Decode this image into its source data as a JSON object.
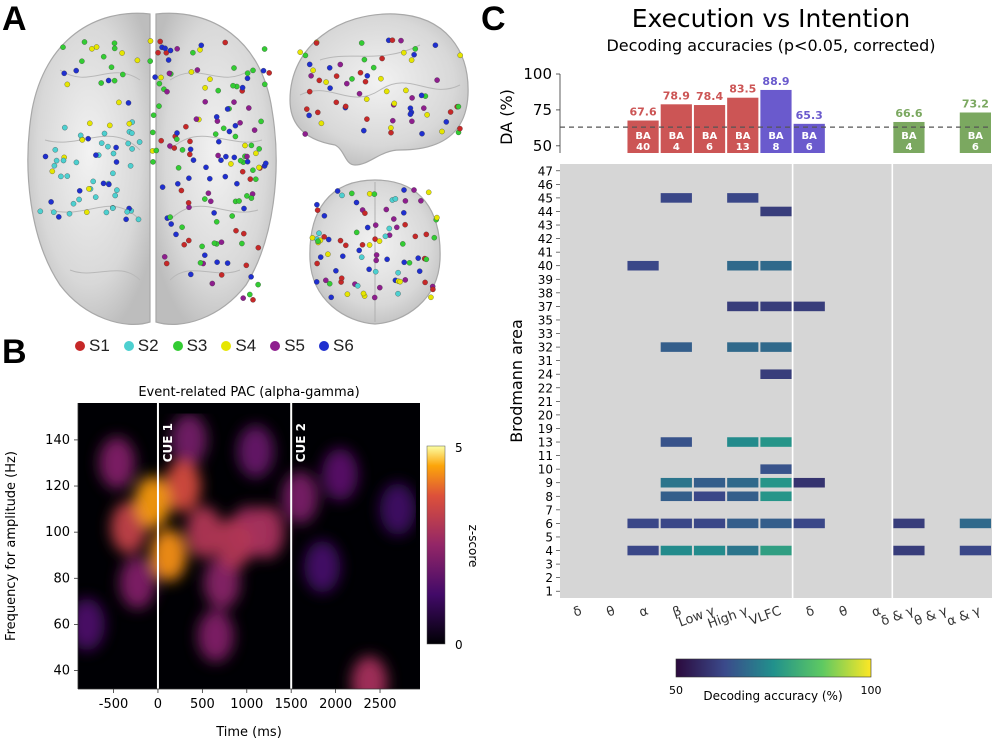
{
  "panel_labels": {
    "a": "A",
    "b": "B",
    "c": "C"
  },
  "panel_a": {
    "legend": [
      {
        "label": "S1",
        "color": "#c62828"
      },
      {
        "label": "S2",
        "color": "#4dd0d0"
      },
      {
        "label": "S3",
        "color": "#33cc33"
      },
      {
        "label": "S4",
        "color": "#e6e600"
      },
      {
        "label": "S5",
        "color": "#8e1e8e"
      },
      {
        "label": "S6",
        "color": "#1f2fcf"
      }
    ]
  },
  "chart_data": [
    {
      "type": "heatmap",
      "title": "Event-related PAC (alpha-gamma)",
      "xlabel": "Time (ms)",
      "ylabel": "Frequency for amplitude (Hz)",
      "xticks": [
        -500,
        0,
        500,
        1000,
        1500,
        2000,
        2500
      ],
      "yticks": [
        40,
        60,
        80,
        100,
        120,
        140
      ],
      "xlim": [
        -900,
        2950
      ],
      "ylim": [
        32,
        156
      ],
      "annotations": [
        {
          "label": "CUE 1",
          "x": 0
        },
        {
          "label": "CUE 2",
          "x": 1500
        }
      ],
      "colorbar": {
        "label": "z-score",
        "min": 0,
        "max": 5,
        "ticks": [
          0,
          5
        ]
      },
      "hotspots": [
        {
          "t": 120,
          "f": 90,
          "z": 4.3
        },
        {
          "t": -60,
          "f": 113,
          "z": 4.4
        },
        {
          "t": 280,
          "f": 120,
          "z": 3.6
        },
        {
          "t": -330,
          "f": 102,
          "z": 3.3
        },
        {
          "t": 520,
          "f": 100,
          "z": 3.0
        },
        {
          "t": 850,
          "f": 95,
          "z": 3.0
        },
        {
          "t": 1020,
          "f": 100,
          "z": 2.7
        },
        {
          "t": 1220,
          "f": 100,
          "z": 2.8
        },
        {
          "t": -460,
          "f": 130,
          "z": 2.2
        },
        {
          "t": -230,
          "f": 78,
          "z": 2.2
        },
        {
          "t": 1600,
          "f": 115,
          "z": 2.1
        },
        {
          "t": 720,
          "f": 78,
          "z": 2.3
        },
        {
          "t": 350,
          "f": 140,
          "z": 2.0
        },
        {
          "t": 2050,
          "f": 125,
          "z": 1.6
        },
        {
          "t": 650,
          "f": 55,
          "z": 2.2
        },
        {
          "t": 2380,
          "f": 35,
          "z": 2.8
        },
        {
          "t": -800,
          "f": 60,
          "z": 1.4
        },
        {
          "t": 1100,
          "f": 135,
          "z": 1.8
        },
        {
          "t": 1850,
          "f": 85,
          "z": 1.3
        },
        {
          "t": 2700,
          "f": 110,
          "z": 1.2
        }
      ]
    },
    {
      "type": "bar",
      "title": "Execution vs Intention",
      "subtitle": "Decoding accuracies (p<0.05, corrected)",
      "ylabel": "DA (%)",
      "ylim": [
        45,
        100
      ],
      "yticks": [
        50,
        75,
        100
      ],
      "threshold": 63,
      "bars": [
        {
          "col": 2,
          "value": 67.6,
          "label": "67.6",
          "ba": "BA",
          "area": "40",
          "color": "#cc5555"
        },
        {
          "col": 3,
          "value": 78.9,
          "label": "78.9",
          "ba": "BA",
          "area": "4",
          "color": "#cc5555"
        },
        {
          "col": 4,
          "value": 78.4,
          "label": "78.4",
          "ba": "BA",
          "area": "6",
          "color": "#cc5555"
        },
        {
          "col": 5,
          "value": 83.5,
          "label": "83.5",
          "ba": "BA",
          "area": "13",
          "color": "#cc5555"
        },
        {
          "col": 6,
          "value": 88.9,
          "label": "88.9",
          "ba": "BA",
          "area": "8",
          "color": "#6a5acd"
        },
        {
          "col": 7,
          "value": 65.3,
          "label": "65.3",
          "ba": "BA",
          "area": "6",
          "color": "#6a5acd"
        },
        {
          "col": 10,
          "value": 66.6,
          "label": "66.6",
          "ba": "BA",
          "area": "4",
          "color": "#7ba860"
        },
        {
          "col": 12,
          "value": 73.2,
          "label": "73.2",
          "ba": "BA",
          "area": "6",
          "color": "#7ba860"
        }
      ]
    },
    {
      "type": "heatmap",
      "ylabel": "Brodmann area",
      "rows": [
        "47",
        "46",
        "45",
        "44",
        "43",
        "42",
        "41",
        "40",
        "39",
        "38",
        "37",
        "35",
        "33",
        "32",
        "31",
        "24",
        "22",
        "21",
        "20",
        "19",
        "13",
        "11",
        "10",
        "9",
        "8",
        "7",
        "6",
        "5",
        "4",
        "3",
        "2",
        "1"
      ],
      "columns": [
        "δ",
        "θ",
        "α",
        "β",
        "Low γ",
        "High γ",
        "VLFC",
        "δ",
        "θ",
        "α",
        "δ & γ",
        "θ & γ",
        "α & γ"
      ],
      "colorbar": {
        "label": "Decoding accuracy (%)",
        "min": 50,
        "max": 100,
        "ticks": [
          "50",
          "100"
        ]
      },
      "cells": [
        {
          "row": "45",
          "col": 3,
          "v": 62
        },
        {
          "row": "45",
          "col": 5,
          "v": 62
        },
        {
          "row": "44",
          "col": 6,
          "v": 60
        },
        {
          "row": "40",
          "col": 2,
          "v": 62
        },
        {
          "row": "40",
          "col": 5,
          "v": 68
        },
        {
          "row": "40",
          "col": 6,
          "v": 68
        },
        {
          "row": "37",
          "col": 5,
          "v": 60
        },
        {
          "row": "37",
          "col": 6,
          "v": 60
        },
        {
          "row": "37",
          "col": 7,
          "v": 60
        },
        {
          "row": "32",
          "col": 3,
          "v": 66
        },
        {
          "row": "32",
          "col": 5,
          "v": 68
        },
        {
          "row": "32",
          "col": 6,
          "v": 68
        },
        {
          "row": "24",
          "col": 6,
          "v": 60
        },
        {
          "row": "13",
          "col": 3,
          "v": 64
        },
        {
          "row": "13",
          "col": 5,
          "v": 74
        },
        {
          "row": "13",
          "col": 6,
          "v": 76
        },
        {
          "row": "10",
          "col": 6,
          "v": 64
        },
        {
          "row": "9",
          "col": 3,
          "v": 70
        },
        {
          "row": "9",
          "col": 4,
          "v": 66
        },
        {
          "row": "9",
          "col": 5,
          "v": 68
        },
        {
          "row": "9",
          "col": 6,
          "v": 76
        },
        {
          "row": "9",
          "col": 7,
          "v": 58
        },
        {
          "row": "8",
          "col": 3,
          "v": 66
        },
        {
          "row": "8",
          "col": 4,
          "v": 62
        },
        {
          "row": "8",
          "col": 5,
          "v": 66
        },
        {
          "row": "8",
          "col": 6,
          "v": 76
        },
        {
          "row": "6",
          "col": 2,
          "v": 62
        },
        {
          "row": "6",
          "col": 3,
          "v": 62
        },
        {
          "row": "6",
          "col": 4,
          "v": 62
        },
        {
          "row": "6",
          "col": 5,
          "v": 66
        },
        {
          "row": "6",
          "col": 6,
          "v": 66
        },
        {
          "row": "6",
          "col": 7,
          "v": 62
        },
        {
          "row": "6",
          "col": 10,
          "v": 60
        },
        {
          "row": "6",
          "col": 12,
          "v": 68
        },
        {
          "row": "4",
          "col": 2,
          "v": 62
        },
        {
          "row": "4",
          "col": 3,
          "v": 74
        },
        {
          "row": "4",
          "col": 4,
          "v": 74
        },
        {
          "row": "4",
          "col": 5,
          "v": 70
        },
        {
          "row": "4",
          "col": 6,
          "v": 78
        },
        {
          "row": "4",
          "col": 10,
          "v": 60
        },
        {
          "row": "4",
          "col": 12,
          "v": 62
        }
      ]
    }
  ]
}
